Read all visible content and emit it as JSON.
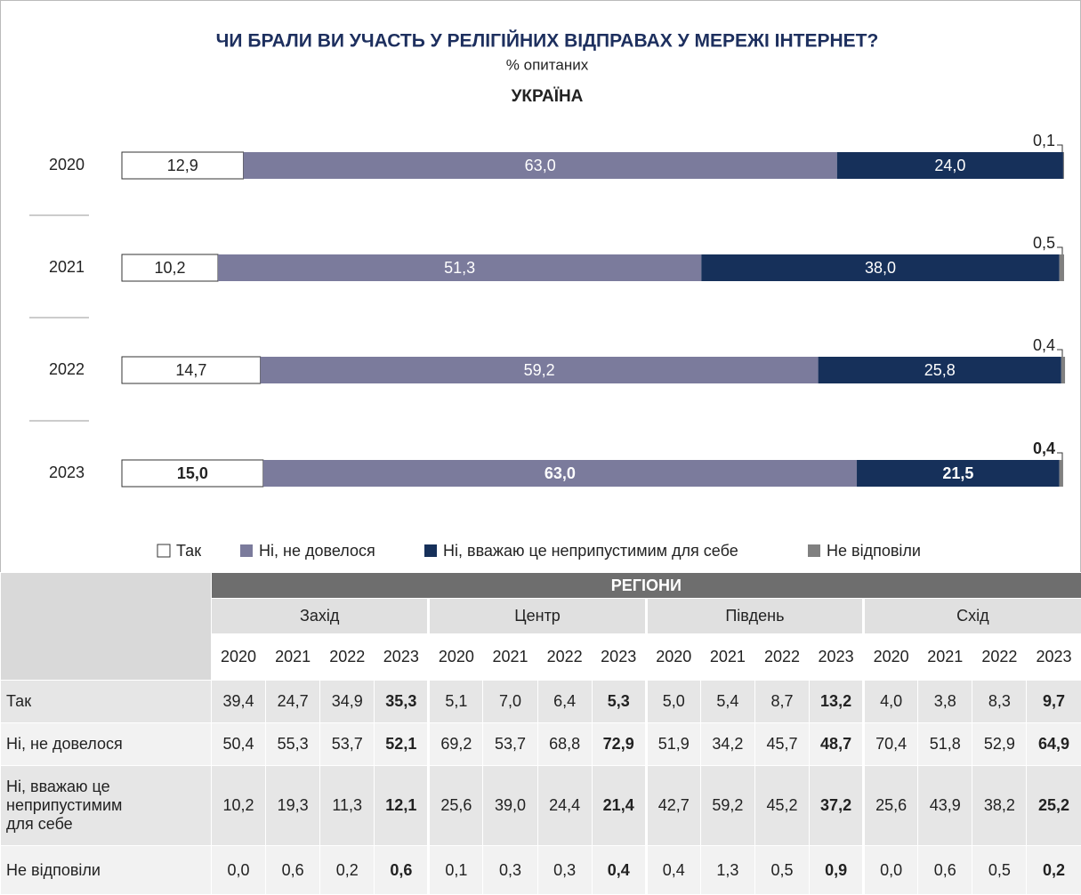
{
  "chart_data": {
    "type": "bar",
    "orientation": "horizontal",
    "stacked": true,
    "title": "ЧИ БРАЛИ ВИ УЧАСТЬ У РЕЛІГІЙНИХ ВІДПРАВАХ У МЕРЕЖІ ІНТЕРНЕТ?",
    "subtitle": "% опитаних",
    "heading": "УКРАЇНА",
    "categories": [
      "2020",
      "2021",
      "2022",
      "2023"
    ],
    "xlim": [
      0,
      100
    ],
    "series": [
      {
        "name": "Так",
        "color": "#ffffff",
        "values": [
          12.9,
          10.2,
          14.7,
          15.0
        ],
        "value_labels": [
          "12,9",
          "10,2",
          "14,7",
          "15,0"
        ]
      },
      {
        "name": "Ні, не довелося",
        "color": "#7b7b9c",
        "values": [
          63.0,
          51.3,
          59.2,
          63.0
        ],
        "value_labels": [
          "63,0",
          "51,3",
          "59,2",
          "63,0"
        ]
      },
      {
        "name": "Ні, вважаю це неприпустимим для себе",
        "color": "#16305a",
        "values": [
          24.0,
          38.0,
          25.8,
          21.5
        ],
        "value_labels": [
          "24,0",
          "38,0",
          "25,8",
          "21,5"
        ]
      },
      {
        "name": "Не відповіли",
        "color": "#808080",
        "values": [
          0.1,
          0.5,
          0.4,
          0.4
        ],
        "value_labels": [
          "0,1",
          "0,5",
          "0,4",
          "0,4"
        ]
      }
    ]
  },
  "table": {
    "header": "РЕГІОНИ",
    "regions": [
      "Захід",
      "Центр",
      "Південь",
      "Схід"
    ],
    "years": [
      "2020",
      "2021",
      "2022",
      "2023"
    ],
    "rows": [
      {
        "label": "Так",
        "cells": [
          "39,4",
          "24,7",
          "34,9",
          "35,3",
          "5,1",
          "7,0",
          "6,4",
          "5,3",
          "5,0",
          "5,4",
          "8,7",
          "13,2",
          "4,0",
          "3,8",
          "8,3",
          "9,7"
        ]
      },
      {
        "label": "Ні, не довелося",
        "cells": [
          "50,4",
          "55,3",
          "53,7",
          "52,1",
          "69,2",
          "53,7",
          "68,8",
          "72,9",
          "51,9",
          "34,2",
          "45,7",
          "48,7",
          "70,4",
          "51,8",
          "52,9",
          "64,9"
        ]
      },
      {
        "label": "Ні, вважаю це неприпустимим для себе",
        "cells": [
          "10,2",
          "19,3",
          "11,3",
          "12,1",
          "25,6",
          "39,0",
          "24,4",
          "21,4",
          "42,7",
          "59,2",
          "45,2",
          "37,2",
          "25,6",
          "43,9",
          "38,2",
          "25,2"
        ]
      },
      {
        "label": "Не відповіли",
        "cells": [
          "0,0",
          "0,6",
          "0,2",
          "0,6",
          "0,1",
          "0,3",
          "0,3",
          "0,4",
          "0,4",
          "1,3",
          "0,5",
          "0,9",
          "0,0",
          "0,6",
          "0,5",
          "0,2"
        ]
      }
    ]
  }
}
